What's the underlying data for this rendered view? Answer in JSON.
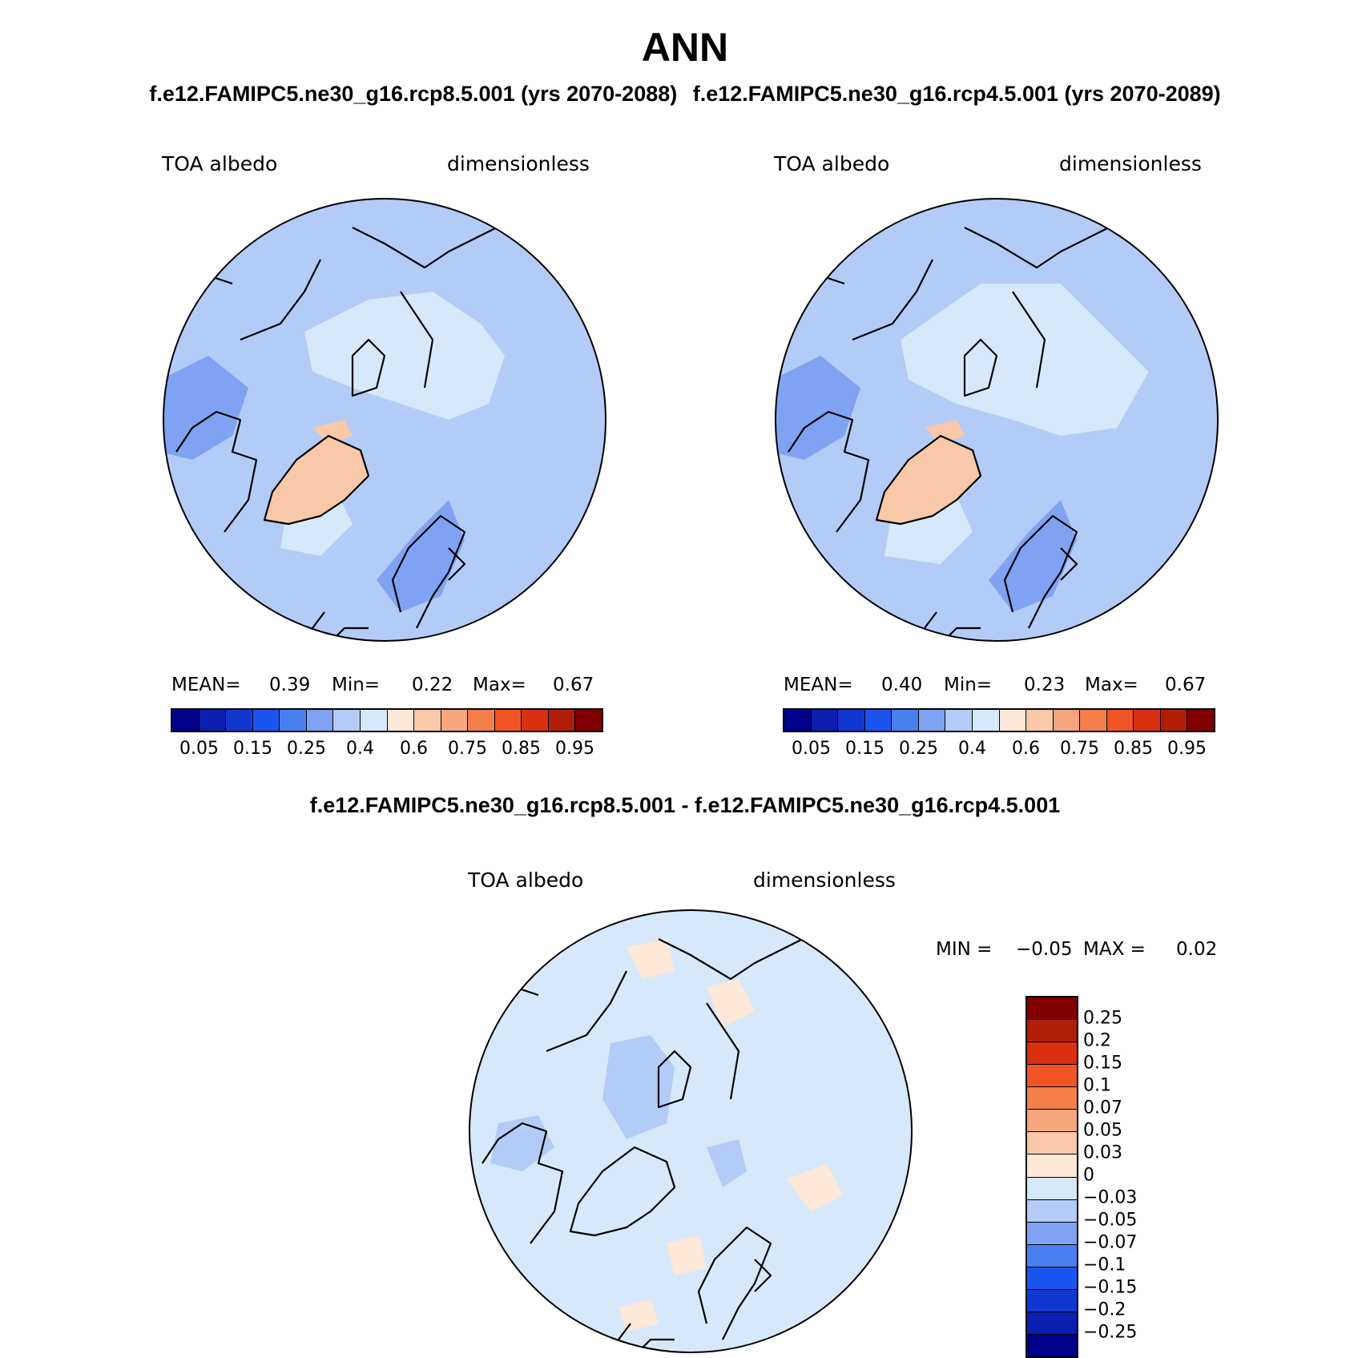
{
  "header": {
    "title": "ANN",
    "case1_title": "f.e12.FAMIPC5.ne30_g16.rcp8.5.001 (yrs 2070-2088)",
    "case2_title": "f.e12.FAMIPC5.ne30_g16.rcp4.5.001 (yrs 2070-2089)",
    "diff_title": "f.e12.FAMIPC5.ne30_g16.rcp8.5.001 - f.e12.FAMIPC5.ne30_g16.rcp4.5.001"
  },
  "panels": {
    "left": {
      "variable": "TOA albedo",
      "units": "dimensionless",
      "mean_label": "MEAN=",
      "mean_value": "0.39",
      "min_label": "Min=",
      "min_value": "0.22",
      "max_label": "Max=",
      "max_value": "0.67"
    },
    "right": {
      "variable": "TOA albedo",
      "units": "dimensionless",
      "mean_label": "MEAN=",
      "mean_value": "0.40",
      "min_label": "Min=",
      "min_value": "0.23",
      "max_label": "Max=",
      "max_value": "0.67"
    },
    "diff": {
      "variable": "TOA albedo",
      "units": "dimensionless",
      "min_label": "MIN =",
      "min_value": "−0.05",
      "max_label": "MAX =",
      "max_value": "0.02"
    }
  },
  "colorbars": {
    "abs_colors": [
      "#00008b",
      "#0a1fb0",
      "#1038d0",
      "#1a55f0",
      "#4a7ff0",
      "#7fa3f2",
      "#b3cbf7",
      "#d7e8fa",
      "#fde8d8",
      "#f8c8a8",
      "#f5a67c",
      "#f47f4a",
      "#f25525",
      "#d83010",
      "#b01e08",
      "#800000"
    ],
    "abs_ticks": [
      "0.05",
      "0.15",
      "0.25",
      "0.4",
      "0.6",
      "0.75",
      "0.85",
      "0.95"
    ],
    "diff_colors": [
      "#800000",
      "#b01e08",
      "#d83010",
      "#f25525",
      "#f47f4a",
      "#f5a67c",
      "#f8c8a8",
      "#fde8d8",
      "#d7e8fa",
      "#b3cbf7",
      "#7fa3f2",
      "#4a7ff0",
      "#1a55f0",
      "#1038d0",
      "#0a1fb0",
      "#00008b"
    ],
    "diff_ticks": [
      "0.25",
      "0.2",
      "0.15",
      "0.1",
      "0.07",
      "0.05",
      "0.03",
      "0",
      "−0.03",
      "−0.05",
      "−0.07",
      "−0.1",
      "−0.15",
      "−0.2",
      "−0.25"
    ]
  },
  "map_colors": {
    "ocean_abs": "#b3cbf7",
    "pole_abs": "#d7e8fa",
    "low_abs": "#7fa3f2",
    "greenland_abs": "#f8c8a8",
    "diff_bg": "#d7e8fa",
    "diff_pos": "#fde8d8",
    "diff_neg": "#b3cbf7",
    "coast": "#000000"
  }
}
